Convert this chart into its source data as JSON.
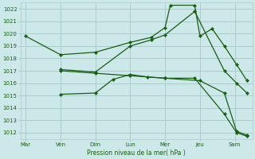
{
  "background_color": "#cce8e8",
  "grid_color": "#aacccc",
  "line_color": "#1a5c1a",
  "x_labels": [
    "Mar",
    "Ven",
    "Dim",
    "Lun",
    "Mer",
    "Jeu",
    "Sam"
  ],
  "x_ticks": [
    0,
    1,
    2,
    3,
    4,
    5,
    6
  ],
  "xlabel": "Pression niveau de la mer( hPa )",
  "ylim": [
    1011.5,
    1022.5
  ],
  "yticks": [
    1012,
    1013,
    1014,
    1015,
    1016,
    1017,
    1018,
    1019,
    1020,
    1021,
    1022
  ],
  "xlim": [
    -0.15,
    6.5
  ],
  "series": [
    {
      "x": [
        0,
        1,
        2,
        3,
        3.6,
        4.0,
        4.15,
        4.85,
        5.0,
        5.35,
        5.7,
        6.05,
        6.35
      ],
      "y": [
        1019.8,
        1018.3,
        1018.5,
        1019.3,
        1019.7,
        1020.5,
        1022.3,
        1022.3,
        1019.8,
        1020.4,
        1019.0,
        1017.5,
        1016.2
      ]
    },
    {
      "x": [
        1,
        2,
        3,
        3.6,
        4.0,
        4.85,
        5.7,
        6.05,
        6.35
      ],
      "y": [
        1017.1,
        1016.9,
        1019.0,
        1019.5,
        1019.9,
        1021.8,
        1017.0,
        1016.0,
        1015.2
      ]
    },
    {
      "x": [
        1,
        2,
        3,
        4,
        5,
        5.7,
        6.05,
        6.35
      ],
      "y": [
        1017.0,
        1016.8,
        1016.6,
        1016.4,
        1016.2,
        1015.2,
        1012.1,
        1011.8
      ]
    },
    {
      "x": [
        1,
        2,
        2.5,
        3,
        3.5,
        4,
        4.85,
        5.7,
        6.05,
        6.35
      ],
      "y": [
        1015.1,
        1015.2,
        1016.3,
        1016.7,
        1016.5,
        1016.4,
        1016.4,
        1013.5,
        1012.0,
        1011.7
      ]
    }
  ]
}
